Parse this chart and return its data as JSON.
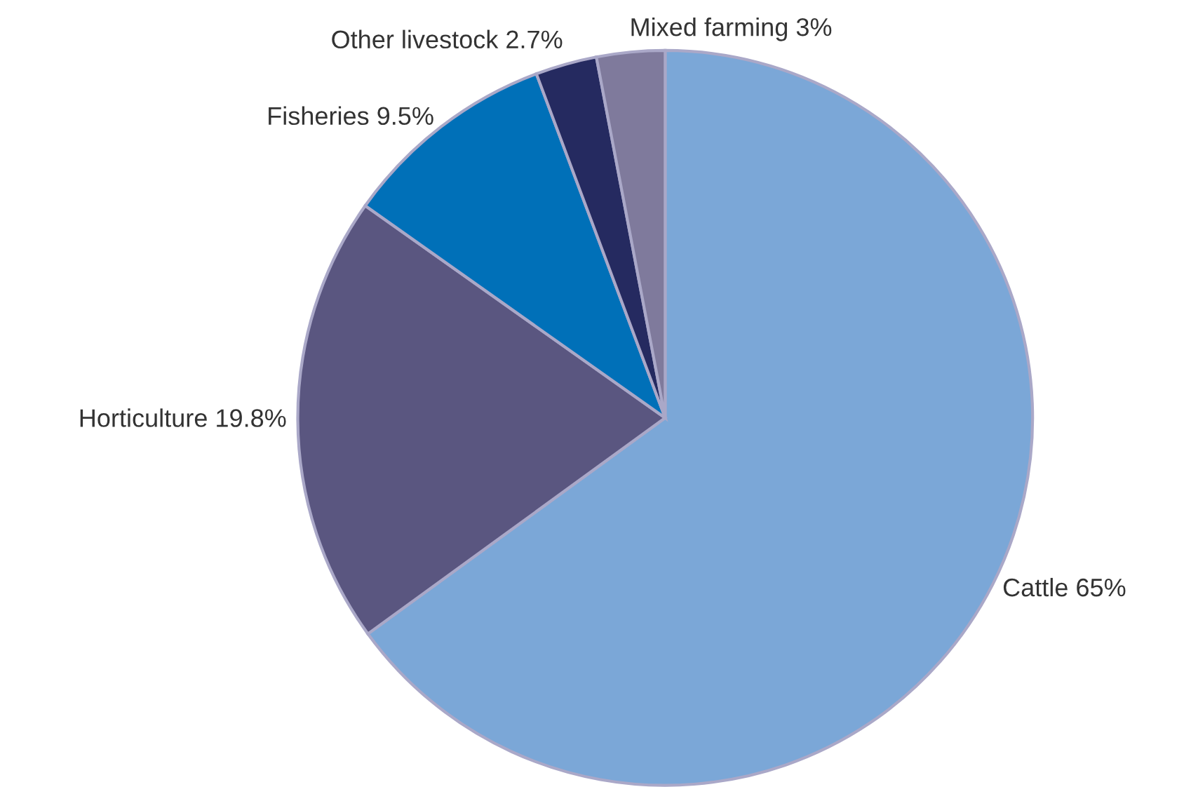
{
  "chart_data": {
    "type": "pie",
    "categories": [
      "Cattle",
      "Horticulture",
      "Fisheries",
      "Other livestock",
      "Mixed farming"
    ],
    "values": [
      65,
      19.8,
      9.5,
      2.7,
      3
    ],
    "value_labels": [
      "65%",
      "19.8%",
      "9.5%",
      "2.7%",
      "3%"
    ],
    "colors": [
      "#7ba7d7",
      "#5a5680",
      "#0070b8",
      "#252a60",
      "#7f7a9c"
    ]
  }
}
